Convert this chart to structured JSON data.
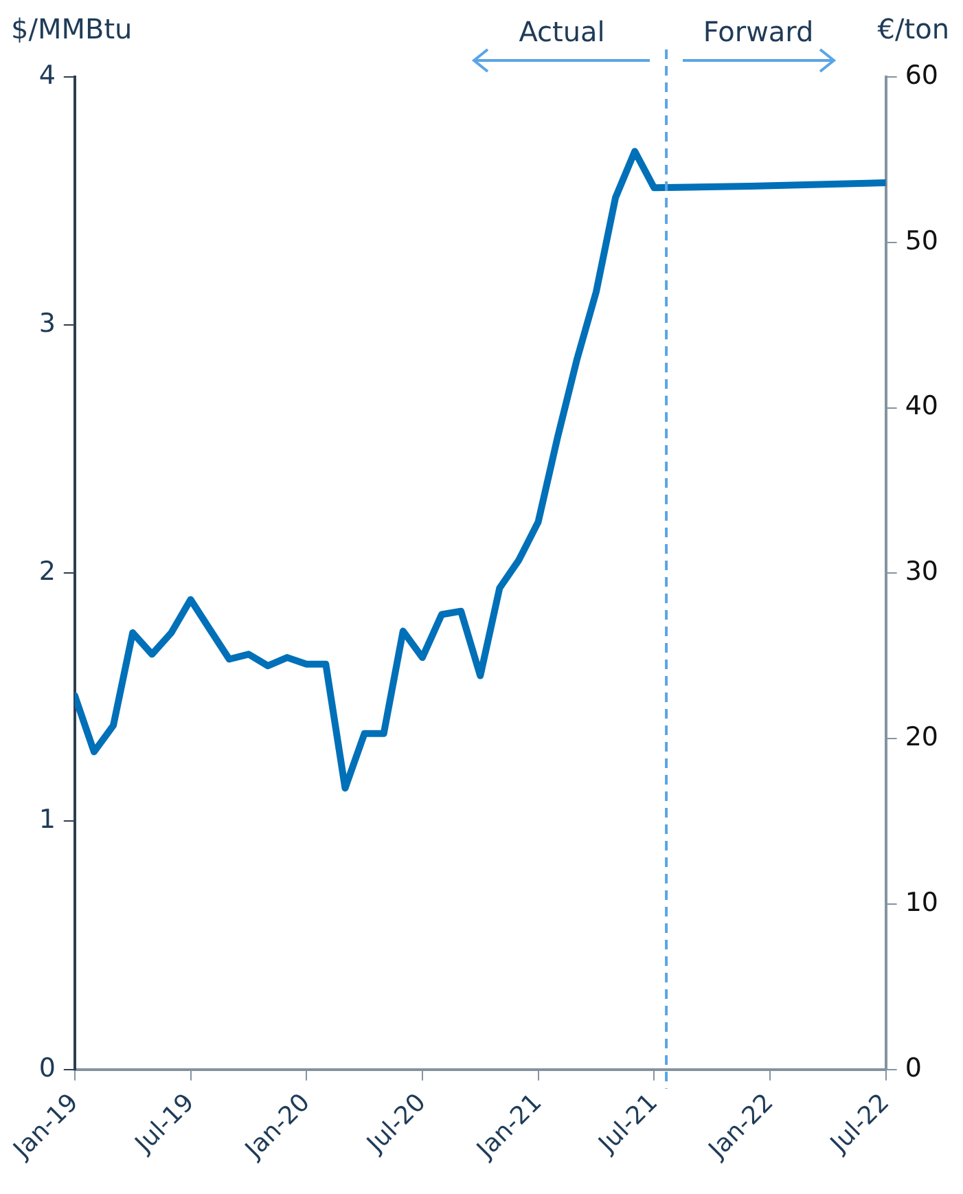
{
  "chart_data": {
    "type": "line",
    "ylabel": "$/MMBtu",
    "y2label": "€/ton",
    "xlim": [
      "2019-01",
      "2022-07"
    ],
    "xticks": [
      {
        "value": "2019-01",
        "label": "Jan-19"
      },
      {
        "value": "2019-07",
        "label": "Jul-19"
      },
      {
        "value": "2020-01",
        "label": "Jan-20"
      },
      {
        "value": "2020-07",
        "label": "Jul-20"
      },
      {
        "value": "2021-01",
        "label": "Jan-21"
      },
      {
        "value": "2021-07",
        "label": "Jul-21"
      },
      {
        "value": "2022-01",
        "label": "Jan-22"
      },
      {
        "value": "2022-07",
        "label": "Jul-22"
      }
    ],
    "ylim": [
      0,
      4
    ],
    "yticks": [
      0,
      1,
      2,
      3,
      4
    ],
    "y2lim": [
      0,
      60
    ],
    "y2ticks": [
      0,
      10,
      20,
      30,
      40,
      50,
      60
    ],
    "series": [
      {
        "color": "#0070b8",
        "axis": "y2",
        "x": [
          "2019-01",
          "2019-02",
          "2019-03",
          "2019-04",
          "2019-05",
          "2019-06",
          "2019-07",
          "2019-08",
          "2019-09",
          "2019-10",
          "2019-11",
          "2019-12",
          "2020-01",
          "2020-02",
          "2020-03",
          "2020-04",
          "2020-05",
          "2020-06",
          "2020-07",
          "2020-08",
          "2020-09",
          "2020-10",
          "2020-11",
          "2020-12",
          "2021-01",
          "2021-02",
          "2021-03",
          "2021-04",
          "2021-05",
          "2021-06",
          "2021-07",
          "2021-12",
          "2022-07"
        ],
        "values": [
          22.6,
          19.2,
          20.8,
          26.4,
          25.1,
          26.4,
          28.4,
          26.6,
          24.8,
          25.1,
          24.4,
          24.9,
          24.5,
          24.5,
          17.0,
          20.3,
          20.3,
          26.5,
          24.9,
          27.5,
          27.7,
          23.8,
          29.1,
          30.8,
          33.1,
          38.2,
          42.9,
          47.0,
          52.7,
          55.5,
          53.3,
          53.4,
          53.6
        ]
      }
    ],
    "ref_lines": [
      {
        "axis": "x",
        "value": "2021-07-20",
        "color": "#5aa5e6",
        "line_style": "dashed"
      }
    ],
    "annotations": [
      "Actual",
      "Forward"
    ],
    "grid": false,
    "legend": false,
    "marker": "none",
    "line_style": "solid"
  }
}
